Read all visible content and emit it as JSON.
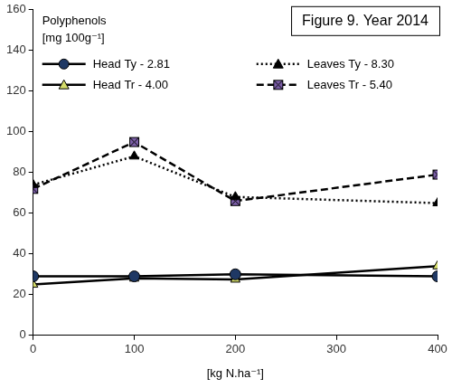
{
  "chart_data": {
    "type": "line",
    "title": "Figure 9. Year 2014",
    "y_label": [
      "Polyphenols",
      "[mg 100g⁻¹]"
    ],
    "x_label": "[kg N.ha⁻¹]",
    "x": [
      0,
      100,
      200,
      400
    ],
    "series": [
      {
        "name": "Head Ty - 2.81",
        "color": "#1f3864",
        "marker": "circle",
        "line_style": "solid",
        "values": [
          29,
          29,
          30,
          29
        ]
      },
      {
        "name": "Head Tr - 4.00",
        "color": "#d4dc6a",
        "marker": "triangle",
        "line_style": "solid",
        "values": [
          25,
          28,
          27.5,
          34
        ]
      },
      {
        "name": "Leaves Ty - 8.30",
        "color": "#000000",
        "marker": "triangle",
        "line_style": "dotted",
        "values": [
          74,
          88,
          68,
          65
        ]
      },
      {
        "name": "Leaves Tr - 5.40",
        "color": "#7b5ea7",
        "marker": "square_x",
        "line_style": "dashed",
        "values": [
          72,
          95,
          66,
          79
        ]
      }
    ],
    "xlim": [
      0,
      400
    ],
    "xticks": [
      0,
      100,
      200,
      300,
      400
    ],
    "ylim": [
      0,
      160
    ],
    "yticks": [
      0,
      20,
      40,
      60,
      80,
      100,
      120,
      140,
      160
    ],
    "grid": false,
    "legend": "top"
  }
}
